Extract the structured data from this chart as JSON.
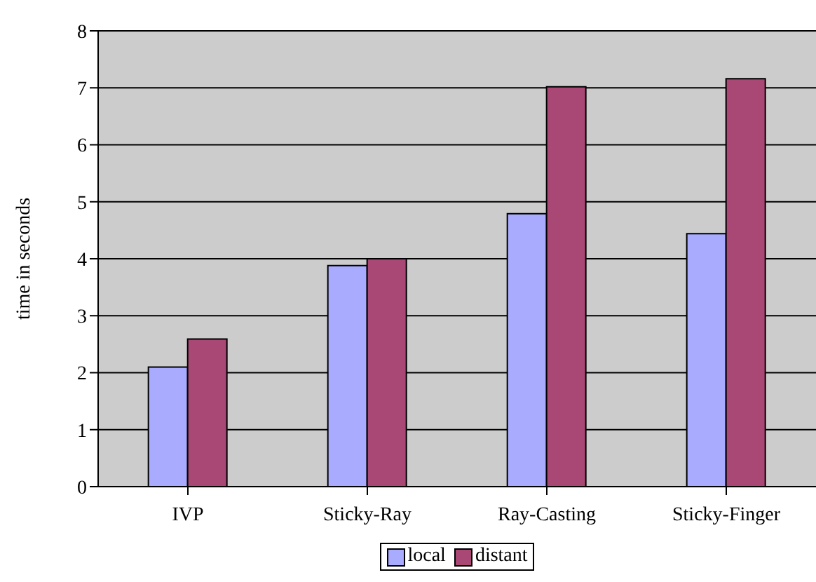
{
  "chart_data": {
    "type": "bar",
    "ylabel": "time in seconds",
    "categories": [
      "IVP",
      "Sticky-Ray",
      "Ray-Casting",
      "Sticky-Finger"
    ],
    "series": [
      {
        "name": "local",
        "color": "#a9abff",
        "values": [
          2.1,
          3.88,
          4.79,
          4.44
        ]
      },
      {
        "name": "distant",
        "color": "#a94874",
        "values": [
          2.59,
          4.0,
          7.02,
          7.16
        ]
      }
    ],
    "ylim": [
      0,
      8
    ],
    "yticks": [
      0,
      1,
      2,
      3,
      4,
      5,
      6,
      7,
      8
    ],
    "grid": "y",
    "legend": "bottom"
  }
}
